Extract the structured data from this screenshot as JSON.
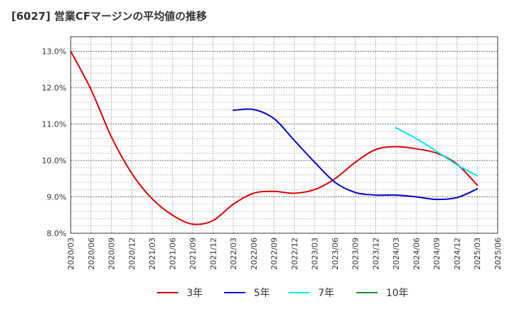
{
  "chart_title": "[6027]  営業CFマージンの平均値の推移",
  "chart_data": {
    "type": "line",
    "title": "[6027]  営業CFマージンの平均値の推移",
    "xlabel": "",
    "ylabel": "",
    "x": [
      "2020/03",
      "2020/06",
      "2020/09",
      "2020/12",
      "2021/03",
      "2021/06",
      "2021/09",
      "2021/12",
      "2022/03",
      "2022/06",
      "2022/09",
      "2022/12",
      "2023/03",
      "2023/06",
      "2023/09",
      "2023/12",
      "2024/03",
      "2024/06",
      "2024/09",
      "2024/12",
      "2025/03",
      "2025/06"
    ],
    "ylim": [
      8.0,
      13.4
    ],
    "yticks": [
      "8.0%",
      "9.0%",
      "10.0%",
      "11.0%",
      "12.0%",
      "13.0%"
    ],
    "ytick_values": [
      8.0,
      9.0,
      10.0,
      11.0,
      12.0,
      13.0
    ],
    "grid": true,
    "legend_position": "bottom",
    "series": [
      {
        "name": "3年",
        "color": "#dd0000",
        "points": [
          [
            "2020/03",
            13.0
          ],
          [
            "2020/06",
            11.95
          ],
          [
            "2020/09",
            10.65
          ],
          [
            "2020/12",
            9.65
          ],
          [
            "2021/03",
            8.95
          ],
          [
            "2021/06",
            8.5
          ],
          [
            "2021/09",
            8.25
          ],
          [
            "2021/12",
            8.35
          ],
          [
            "2022/03",
            8.8
          ],
          [
            "2022/06",
            9.1
          ],
          [
            "2022/09",
            9.15
          ],
          [
            "2022/12",
            9.1
          ],
          [
            "2023/03",
            9.2
          ],
          [
            "2023/06",
            9.5
          ],
          [
            "2023/09",
            9.95
          ],
          [
            "2023/12",
            10.3
          ],
          [
            "2024/03",
            10.38
          ],
          [
            "2024/06",
            10.32
          ],
          [
            "2024/09",
            10.2
          ],
          [
            "2024/12",
            9.9
          ],
          [
            "2025/03",
            9.32
          ]
        ]
      },
      {
        "name": "5年",
        "color": "#0000cc",
        "points": [
          [
            "2022/03",
            11.38
          ],
          [
            "2022/06",
            11.4
          ],
          [
            "2022/09",
            11.15
          ],
          [
            "2022/12",
            10.55
          ],
          [
            "2023/03",
            9.95
          ],
          [
            "2023/06",
            9.4
          ],
          [
            "2023/09",
            9.12
          ],
          [
            "2023/12",
            9.05
          ],
          [
            "2024/03",
            9.05
          ],
          [
            "2024/06",
            9.0
          ],
          [
            "2024/09",
            8.93
          ],
          [
            "2024/12",
            8.98
          ],
          [
            "2025/03",
            9.22
          ]
        ]
      },
      {
        "name": "7年",
        "color": "#00e5ee",
        "points": [
          [
            "2024/03",
            10.9
          ],
          [
            "2024/06",
            10.6
          ],
          [
            "2024/09",
            10.25
          ],
          [
            "2024/12",
            9.88
          ],
          [
            "2025/03",
            9.58
          ]
        ]
      },
      {
        "name": "10年",
        "color": "#228b22",
        "points": []
      }
    ]
  }
}
